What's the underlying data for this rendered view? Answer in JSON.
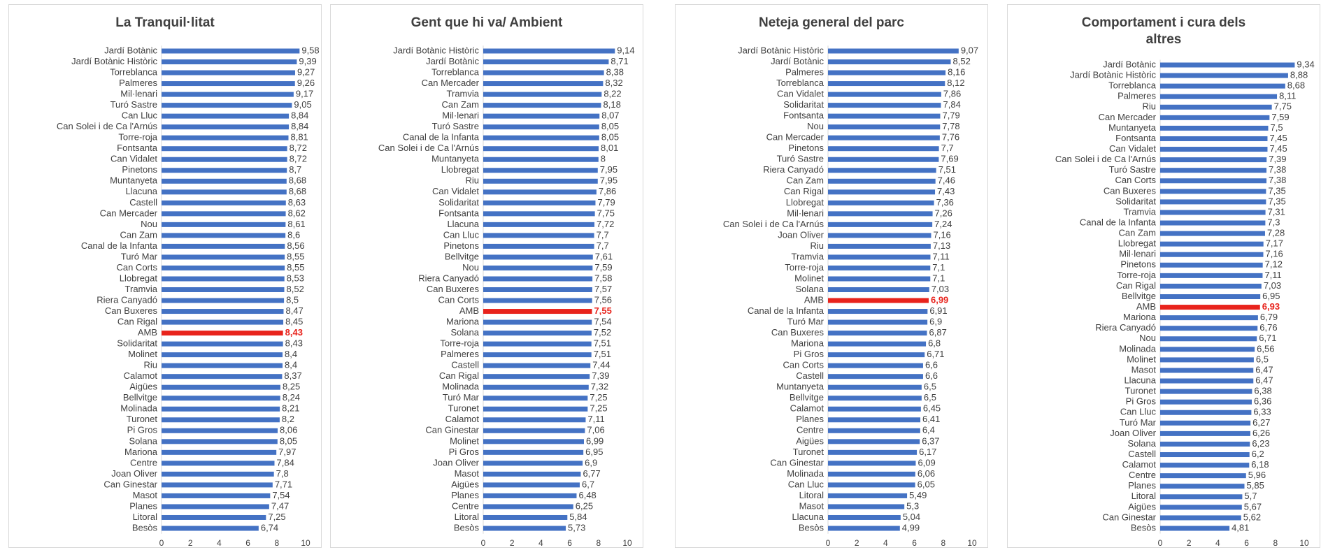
{
  "chart_data": [
    {
      "type": "bar",
      "orientation": "horizontal",
      "title": "La Tranquil·litat",
      "categories": [
        "Jardí Botànic",
        "Jardí Botànic Històric",
        "Torreblanca",
        "Palmeres",
        "Mil·lenari",
        "Turó Sastre",
        "Can Lluc",
        "Can Solei i de Ca l'Arnús",
        "Torre-roja",
        "Fontsanta",
        "Can Vidalet",
        "Pinetons",
        "Muntanyeta",
        "Llacuna",
        "Castell",
        "Can Mercader",
        "Nou",
        "Can Zam",
        "Canal de la Infanta",
        "Turó Mar",
        "Can Corts",
        "Llobregat",
        "Tramvia",
        "Riera Canyadó",
        "Can Buxeres",
        "Can Rigal",
        "AMB",
        "Solidaritat",
        "Molinet",
        "Riu",
        "Calamot",
        "Aigües",
        "Bellvitge",
        "Molinada",
        "Turonet",
        "Pi Gros",
        "Solana",
        "Mariona",
        "Centre",
        "Joan Oliver",
        "Can Ginestar",
        "Masot",
        "Planes",
        "Litoral",
        "Besòs"
      ],
      "values": [
        9.58,
        9.39,
        9.27,
        9.26,
        9.17,
        9.05,
        8.84,
        8.84,
        8.81,
        8.72,
        8.72,
        8.7,
        8.68,
        8.68,
        8.63,
        8.62,
        8.61,
        8.6,
        8.56,
        8.55,
        8.55,
        8.53,
        8.52,
        8.5,
        8.47,
        8.45,
        8.43,
        8.43,
        8.4,
        8.4,
        8.37,
        8.25,
        8.24,
        8.21,
        8.2,
        8.06,
        8.05,
        7.97,
        7.84,
        7.8,
        7.71,
        7.54,
        7.47,
        7.25,
        6.74
      ],
      "value_labels": [
        "9,58",
        "9,39",
        "9,27",
        "9,26",
        "9,17",
        "9,05",
        "8,84",
        "8,84",
        "8,81",
        "8,72",
        "8,72",
        "8,7",
        "8,68",
        "8,68",
        "8,63",
        "8,62",
        "8,61",
        "8,6",
        "8,56",
        "8,55",
        "8,55",
        "8,53",
        "8,52",
        "8,5",
        "8,47",
        "8,45",
        "8,43",
        "8,43",
        "8,4",
        "8,4",
        "8,37",
        "8,25",
        "8,24",
        "8,21",
        "8,2",
        "8,06",
        "8,05",
        "7,97",
        "7,84",
        "7,8",
        "7,71",
        "7,54",
        "7,47",
        "7,25",
        "6,74"
      ],
      "color": "#4472c4",
      "highlight_category": "AMB",
      "highlight_color": "#e8231c",
      "xlim": [
        0,
        10
      ],
      "xticks": [
        0,
        2,
        4,
        6,
        8,
        10
      ]
    },
    {
      "type": "bar",
      "orientation": "horizontal",
      "title": "Gent que hi va/ Ambient",
      "categories": [
        "Jardí Botànic Històric",
        "Jardí Botànic",
        "Torreblanca",
        "Can Mercader",
        "Tramvia",
        "Can Zam",
        "Mil·lenari",
        "Turó Sastre",
        "Canal de la Infanta",
        "Can Solei i de Ca l'Arnús",
        "Muntanyeta",
        "Llobregat",
        "Riu",
        "Can Vidalet",
        "Solidaritat",
        "Fontsanta",
        "Llacuna",
        "Can Lluc",
        "Pinetons",
        "Bellvitge",
        "Nou",
        "Riera Canyadó",
        "Can Buxeres",
        "Can Corts",
        "AMB",
        "Mariona",
        "Solana",
        "Torre-roja",
        "Palmeres",
        "Castell",
        "Can Rigal",
        "Molinada",
        "Turó Mar",
        "Turonet",
        "Calamot",
        "Can Ginestar",
        "Molinet",
        "Pi Gros",
        "Joan Oliver",
        "Masot",
        "Aigües",
        "Planes",
        "Centre",
        "Litoral",
        "Besòs"
      ],
      "values": [
        9.14,
        8.71,
        8.38,
        8.32,
        8.22,
        8.18,
        8.07,
        8.05,
        8.05,
        8.01,
        8,
        7.95,
        7.95,
        7.86,
        7.79,
        7.75,
        7.72,
        7.7,
        7.7,
        7.61,
        7.59,
        7.58,
        7.57,
        7.56,
        7.55,
        7.54,
        7.52,
        7.51,
        7.51,
        7.44,
        7.39,
        7.32,
        7.25,
        7.25,
        7.11,
        7.06,
        6.99,
        6.95,
        6.9,
        6.77,
        6.7,
        6.48,
        6.25,
        5.84,
        5.73
      ],
      "value_labels": [
        "9,14",
        "8,71",
        "8,38",
        "8,32",
        "8,22",
        "8,18",
        "8,07",
        "8,05",
        "8,05",
        "8,01",
        "8",
        "7,95",
        "7,95",
        "7,86",
        "7,79",
        "7,75",
        "7,72",
        "7,7",
        "7,7",
        "7,61",
        "7,59",
        "7,58",
        "7,57",
        "7,56",
        "7,55",
        "7,54",
        "7,52",
        "7,51",
        "7,51",
        "7,44",
        "7,39",
        "7,32",
        "7,25",
        "7,25",
        "7,11",
        "7,06",
        "6,99",
        "6,95",
        "6,9",
        "6,77",
        "6,7",
        "6,48",
        "6,25",
        "5,84",
        "5,73"
      ],
      "color": "#4472c4",
      "highlight_category": "AMB",
      "highlight_color": "#e8231c",
      "xlim": [
        0,
        10
      ],
      "xticks": [
        0,
        2,
        4,
        6,
        8,
        10
      ]
    },
    {
      "type": "bar",
      "orientation": "horizontal",
      "title": "Neteja general del parc",
      "categories": [
        "Jardí Botànic Històric",
        "Jardí Botànic",
        "Palmeres",
        "Torreblanca",
        "Can Vidalet",
        "Solidaritat",
        "Fontsanta",
        "Nou",
        "Can Mercader",
        "Pinetons",
        "Turó Sastre",
        "Riera Canyadó",
        "Can Zam",
        "Can Rigal",
        "Llobregat",
        "Mil·lenari",
        "Can Solei i de Ca l'Arnús",
        "Joan Oliver",
        "Riu",
        "Tramvia",
        "Torre-roja",
        "Molinet",
        "Solana",
        "AMB",
        "Canal de la Infanta",
        "Turó Mar",
        "Can Buxeres",
        "Mariona",
        "Pi Gros",
        "Can Corts",
        "Castell",
        "Muntanyeta",
        "Bellvitge",
        "Calamot",
        "Planes",
        "Centre",
        "Aigües",
        "Turonet",
        "Can Ginestar",
        "Molinada",
        "Can Lluc",
        "Litoral",
        "Masot",
        "Llacuna",
        "Besòs"
      ],
      "values": [
        9.07,
        8.52,
        8.16,
        8.12,
        7.86,
        7.84,
        7.79,
        7.78,
        7.76,
        7.7,
        7.69,
        7.51,
        7.46,
        7.43,
        7.36,
        7.26,
        7.24,
        7.16,
        7.13,
        7.11,
        7.1,
        7.1,
        7.03,
        6.99,
        6.91,
        6.9,
        6.87,
        6.8,
        6.71,
        6.6,
        6.6,
        6.5,
        6.5,
        6.45,
        6.41,
        6.4,
        6.37,
        6.17,
        6.09,
        6.06,
        6.05,
        5.49,
        5.3,
        5.04,
        4.99
      ],
      "value_labels": [
        "9,07",
        "8,52",
        "8,16",
        "8,12",
        "7,86",
        "7,84",
        "7,79",
        "7,78",
        "7,76",
        "7,7",
        "7,69",
        "7,51",
        "7,46",
        "7,43",
        "7,36",
        "7,26",
        "7,24",
        "7,16",
        "7,13",
        "7,11",
        "7,1",
        "7,1",
        "7,03",
        "6,99",
        "6,91",
        "6,9",
        "6,87",
        "6,8",
        "6,71",
        "6,6",
        "6,6",
        "6,5",
        "6,5",
        "6,45",
        "6,41",
        "6,4",
        "6,37",
        "6,17",
        "6,09",
        "6,06",
        "6,05",
        "5,49",
        "5,3",
        "5,04",
        "4,99"
      ],
      "color": "#4472c4",
      "highlight_category": "AMB",
      "highlight_color": "#e8231c",
      "xlim": [
        0,
        10
      ],
      "xticks": [
        0,
        2,
        4,
        6,
        8,
        10
      ]
    },
    {
      "type": "bar",
      "orientation": "horizontal",
      "title": "Comportament i cura dels altres",
      "categories": [
        "Jardí Botànic",
        "Jardí Botànic Històric",
        "Torreblanca",
        "Palmeres",
        "Riu",
        "Can Mercader",
        "Muntanyeta",
        "Fontsanta",
        "Can Vidalet",
        "Can Solei i de Ca l'Arnús",
        "Turó Sastre",
        "Can Corts",
        "Can Buxeres",
        "Solidaritat",
        "Tramvia",
        "Canal de la Infanta",
        "Can Zam",
        "Llobregat",
        "Mil·lenari",
        "Pinetons",
        "Torre-roja",
        "Can Rigal",
        "Bellvitge",
        "AMB",
        "Mariona",
        "Riera Canyadó",
        "Nou",
        "Molinada",
        "Molinet",
        "Masot",
        "Llacuna",
        "Turonet",
        "Pi Gros",
        "Can Lluc",
        "Turó Mar",
        "Joan Oliver",
        "Solana",
        "Castell",
        "Calamot",
        "Centre",
        "Planes",
        "Litoral",
        "Aigües",
        "Can Ginestar",
        "Besòs"
      ],
      "values": [
        9.34,
        8.88,
        8.68,
        8.11,
        7.75,
        7.59,
        7.5,
        7.45,
        7.45,
        7.39,
        7.38,
        7.38,
        7.35,
        7.35,
        7.31,
        7.3,
        7.28,
        7.17,
        7.16,
        7.12,
        7.11,
        7.03,
        6.95,
        6.93,
        6.79,
        6.76,
        6.71,
        6.56,
        6.5,
        6.47,
        6.47,
        6.38,
        6.36,
        6.33,
        6.27,
        6.26,
        6.23,
        6.2,
        6.18,
        5.96,
        5.85,
        5.7,
        5.67,
        5.62,
        4.81
      ],
      "value_labels": [
        "9,34",
        "8,88",
        "8,68",
        "8,11",
        "7,75",
        "7,59",
        "7,5",
        "7,45",
        "7,45",
        "7,39",
        "7,38",
        "7,38",
        "7,35",
        "7,35",
        "7,31",
        "7,3",
        "7,28",
        "7,17",
        "7,16",
        "7,12",
        "7,11",
        "7,03",
        "6,95",
        "6,93",
        "6,79",
        "6,76",
        "6,71",
        "6,56",
        "6,5",
        "6,47",
        "6,47",
        "6,38",
        "6,36",
        "6,33",
        "6,27",
        "6,26",
        "6,23",
        "6,2",
        "6,18",
        "5,96",
        "5,85",
        "5,7",
        "5,67",
        "5,62",
        "4,81"
      ],
      "color": "#4472c4",
      "highlight_category": "AMB",
      "highlight_color": "#e8231c",
      "xlim": [
        0,
        10
      ],
      "xticks": [
        0,
        2,
        4,
        6,
        8,
        10
      ]
    }
  ]
}
